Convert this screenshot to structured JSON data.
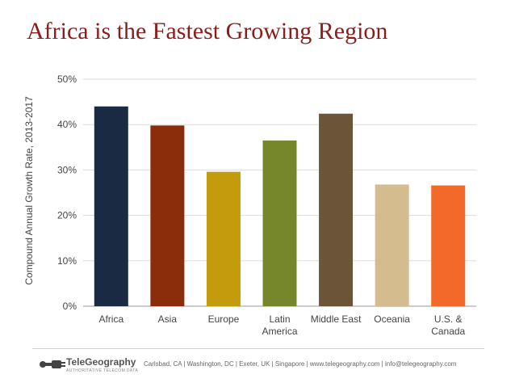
{
  "title": "Africa is the Fastest Growing Region",
  "footer": {
    "logo_name": "TeleGeography",
    "logo_tagline": "AUTHORITATIVE TELECOM DATA",
    "text": "Carlsbad, CA | Washington, DC | Exeter, UK | Singapore | www.telegeography.com | info@telegeography.com"
  },
  "chart_data": {
    "type": "bar",
    "title": "Africa is the Fastest Growing Region",
    "xlabel": "",
    "ylabel": "Compound Annual Growth Rate, 2013-2017",
    "categories": [
      "Africa",
      "Asia",
      "Europe",
      "Latin America",
      "Middle East",
      "Oceania",
      "U.S. & Canada"
    ],
    "category_lines": [
      [
        "Africa"
      ],
      [
        "Asia"
      ],
      [
        "Europe"
      ],
      [
        "Latin",
        "America"
      ],
      [
        "Middle East"
      ],
      [
        "Oceania"
      ],
      [
        "U.S. &",
        "Canada"
      ]
    ],
    "values": [
      44,
      39.8,
      29.6,
      36.5,
      42.4,
      26.8,
      26.6
    ],
    "colors": [
      "#1a2a42",
      "#8b2c0a",
      "#c39b0c",
      "#76862a",
      "#6b5539",
      "#d4bc8f",
      "#f2692a"
    ],
    "ylim": [
      0,
      50
    ],
    "yticks": [
      0,
      10,
      20,
      30,
      40,
      50
    ],
    "ytick_labels": [
      "0%",
      "10%",
      "20%",
      "30%",
      "40%",
      "50%"
    ],
    "grid": true,
    "legend": "none"
  }
}
